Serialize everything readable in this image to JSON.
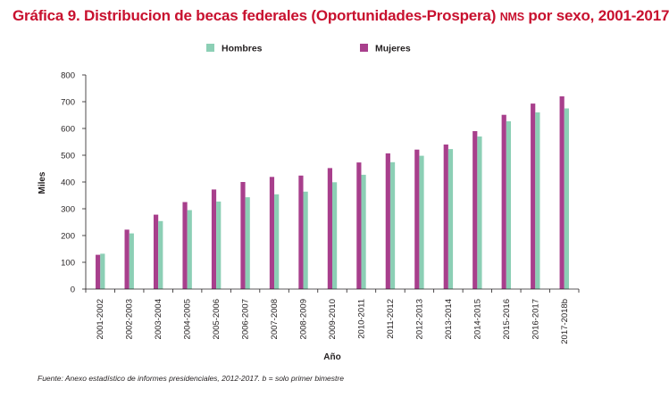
{
  "title": {
    "main": "Gráfica 9. Distribucion de becas federales (Oportunidades-Prospera) ",
    "smallcaps": "NMS",
    "rest": " por sexo, 2001-2017"
  },
  "source": "Fuente: Anexo estadístico de informes presidenciales, 2012-2017. b = solo primer bimestre",
  "chart_data": {
    "type": "bar",
    "categories": [
      "2001-2002",
      "2002-2003",
      "2003-2004",
      "2004-2005",
      "2005-2006",
      "2006-2007",
      "2007-2008",
      "2008-2009",
      "2009-2010",
      "2010-2011",
      "2011-2012",
      "2012-2013",
      "2013-2014",
      "2014-2015",
      "2015-2016",
      "2016-2017",
      "2017-2018b"
    ],
    "series": [
      {
        "name": "Mujeres",
        "color": "#a83f8c",
        "values": [
          128,
          222,
          278,
          325,
          372,
          400,
          419,
          424,
          452,
          473,
          507,
          521,
          540,
          590,
          651,
          693,
          720
        ]
      },
      {
        "name": "Hombres",
        "color": "#8ccfb5",
        "values": [
          132,
          208,
          254,
          295,
          327,
          343,
          354,
          364,
          399,
          427,
          474,
          498,
          523,
          570,
          627,
          660,
          675
        ]
      }
    ],
    "xlabel": "Año",
    "ylabel": "Miles",
    "ylim": [
      0,
      800
    ],
    "yticks": [
      0,
      100,
      200,
      300,
      400,
      500,
      600,
      700,
      800
    ],
    "legend": [
      "Hombres",
      "Mujeres"
    ],
    "legend_position": "top",
    "grid": false
  }
}
